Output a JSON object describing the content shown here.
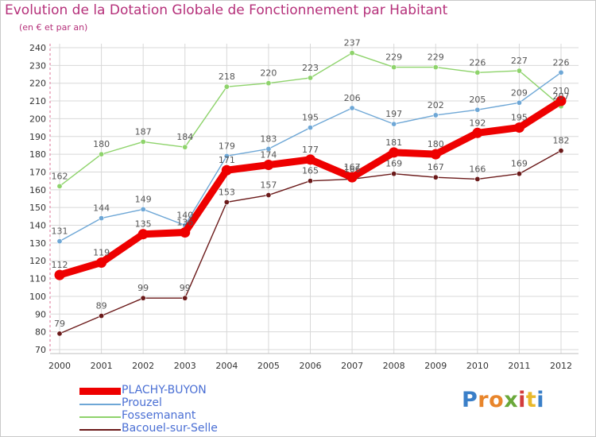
{
  "title": "Evolution de la Dotation Globale de Fonctionnement par Habitant",
  "subtitle": "(en € et par an)",
  "logo": {
    "text": "Proxiti",
    "colors": [
      "#3a7fc8",
      "#e8852b",
      "#e8852b",
      "#6aa83a",
      "#d23c3c",
      "#e8b82b",
      "#3a7fc8"
    ]
  },
  "chart_data": {
    "type": "line",
    "x": [
      "2000",
      "2001",
      "2002",
      "2003",
      "2004",
      "2005",
      "2006",
      "2007",
      "2008",
      "2009",
      "2010",
      "2011",
      "2012"
    ],
    "ylim": [
      70,
      240
    ],
    "yticks": [
      "70",
      "80",
      "90",
      "100",
      "110",
      "120",
      "130",
      "140",
      "150",
      "160",
      "170",
      "180",
      "190",
      "200",
      "210",
      "220",
      "230",
      "240"
    ],
    "grid": true,
    "legend_position": "bottom-left",
    "series": [
      {
        "name": "Bacouel-sur-Selle",
        "color": "#6b1a1a",
        "values": [
          79,
          89,
          99,
          99,
          153,
          157,
          165,
          166,
          169,
          167,
          166,
          169,
          182
        ],
        "labels": [
          "79",
          "89",
          "99",
          "99",
          "153",
          "157",
          "165",
          "166",
          "169",
          "167",
          "166",
          "169",
          "182"
        ]
      },
      {
        "name": "Fossemanant",
        "color": "#8ed36b",
        "values": [
          162,
          180,
          187,
          184,
          218,
          220,
          223,
          237,
          229,
          229,
          226,
          227,
          207
        ],
        "labels": [
          "162",
          "180",
          "187",
          "184",
          "218",
          "220",
          "223",
          "237",
          "229",
          "229",
          "226",
          "227",
          "207"
        ]
      },
      {
        "name": "Prouzel",
        "color": "#6ea7d6",
        "values": [
          131,
          144,
          149,
          140,
          179,
          183,
          195,
          206,
          197,
          202,
          205,
          209,
          226
        ],
        "labels": [
          "131",
          "144",
          "149",
          "140",
          "179",
          "183",
          "195",
          "206",
          "197",
          "202",
          "205",
          "209",
          "226"
        ]
      },
      {
        "name": "PLACHY-BUYON",
        "color": "#ee0000",
        "values": [
          112,
          119,
          135,
          136,
          171,
          174,
          177,
          167,
          181,
          180,
          192,
          195,
          210
        ],
        "labels": [
          "112",
          "119",
          "135",
          "136",
          "171",
          "174",
          "177",
          "167",
          "181",
          "180",
          "192",
          "195",
          "210"
        ]
      }
    ],
    "legend": [
      "PLACHY-BUYON",
      "Prouzel",
      "Fossemanant",
      "Bacouel-sur-Selle"
    ]
  }
}
